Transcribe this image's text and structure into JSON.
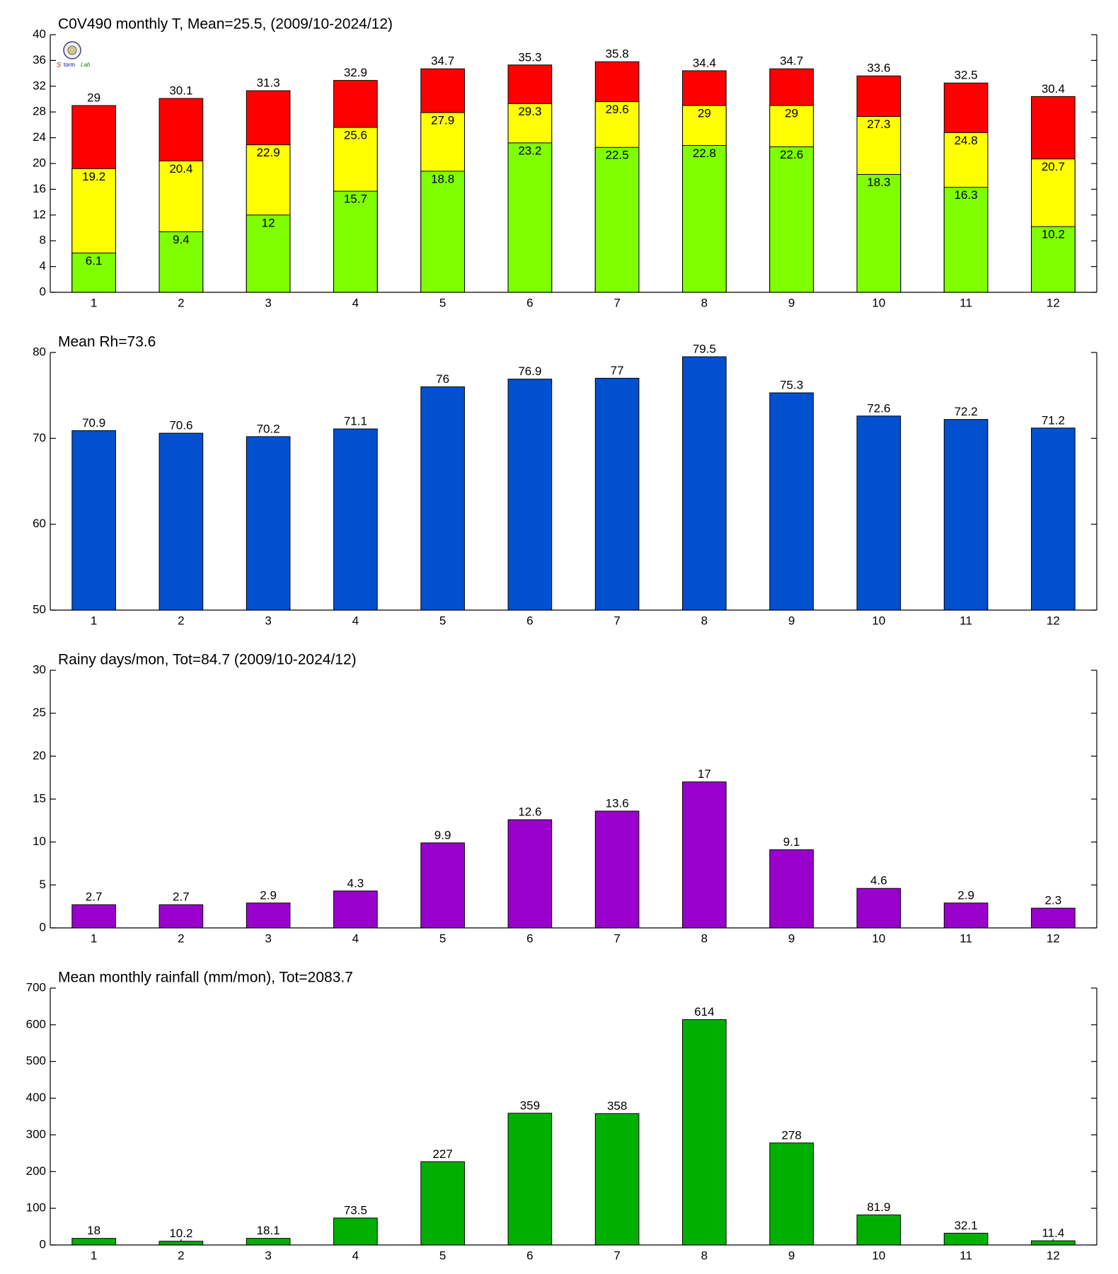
{
  "chart_data": [
    {
      "type": "bar",
      "title": "C0V490 monthly T, Mean=25.5, (2009/10-2024/12)",
      "categories": [
        "1",
        "2",
        "3",
        "4",
        "5",
        "6",
        "7",
        "8",
        "9",
        "10",
        "11",
        "12"
      ],
      "series": [
        {
          "color": "#ff0000",
          "values": [
            29,
            30.1,
            31.3,
            32.9,
            34.7,
            35.3,
            35.8,
            34.4,
            34.7,
            33.6,
            32.5,
            30.4
          ]
        },
        {
          "color": "#ffff00",
          "values": [
            19.2,
            20.4,
            22.9,
            25.6,
            27.9,
            29.3,
            29.6,
            29,
            29,
            27.3,
            24.8,
            20.7
          ]
        },
        {
          "color": "#80ff00",
          "values": [
            6.1,
            9.4,
            12,
            15.7,
            18.8,
            23.2,
            22.5,
            22.8,
            22.6,
            18.3,
            16.3,
            10.2
          ]
        }
      ],
      "ylim": [
        0,
        40
      ],
      "yticks": [
        0,
        4,
        8,
        12,
        16,
        20,
        24,
        28,
        32,
        36,
        40
      ]
    },
    {
      "type": "bar",
      "title": "Mean Rh=73.6",
      "categories": [
        "1",
        "2",
        "3",
        "4",
        "5",
        "6",
        "7",
        "8",
        "9",
        "10",
        "11",
        "12"
      ],
      "values": [
        70.9,
        70.6,
        70.2,
        71.1,
        76,
        76.9,
        77,
        79.5,
        75.3,
        72.6,
        72.2,
        71.2
      ],
      "color": "#0050d0",
      "ylim": [
        50,
        80
      ],
      "yticks": [
        50,
        60,
        70,
        80
      ]
    },
    {
      "type": "bar",
      "title": "Rainy days/mon, Tot=84.7 (2009/10-2024/12)",
      "categories": [
        "1",
        "2",
        "3",
        "4",
        "5",
        "6",
        "7",
        "8",
        "9",
        "10",
        "11",
        "12"
      ],
      "values": [
        2.7,
        2.7,
        2.9,
        4.3,
        9.9,
        12.6,
        13.6,
        17,
        9.1,
        4.6,
        2.9,
        2.3
      ],
      "color": "#9900cc",
      "ylim": [
        0,
        30
      ],
      "yticks": [
        0,
        5,
        10,
        15,
        20,
        25,
        30
      ]
    },
    {
      "type": "bar",
      "title": "Mean monthly rainfall (mm/mon), Tot=2083.7",
      "categories": [
        "1",
        "2",
        "3",
        "4",
        "5",
        "6",
        "7",
        "8",
        "9",
        "10",
        "11",
        "12"
      ],
      "values": [
        18,
        10.2,
        18.1,
        73.5,
        227,
        359,
        358,
        614,
        278,
        81.9,
        32.1,
        11.4
      ],
      "color": "#00b000",
      "ylim": [
        0,
        700
      ],
      "yticks": [
        0,
        100,
        200,
        300,
        400,
        500,
        600,
        700
      ]
    }
  ]
}
